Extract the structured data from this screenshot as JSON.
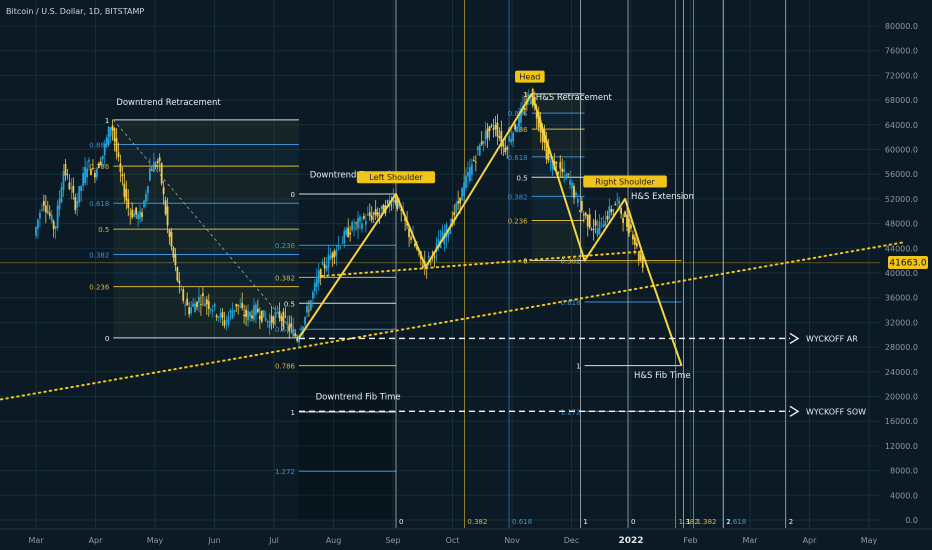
{
  "header": {
    "symbol_text": "Bitcoin / U.S. Dollar, 1D, BITSTAMP"
  },
  "price_tag": {
    "value": "41663.0",
    "bg": "#f0c419",
    "fg": "#101010"
  },
  "colors": {
    "background": "#0b1a24",
    "grid": "#14303b",
    "candle_up": "#26a0d8",
    "candle_down": "#f2c94c",
    "pattern_line": "#f5d442",
    "trendline": "#f0c419",
    "fib_blue": "#3f8fd6",
    "fib_yellow": "#d9b43a",
    "fib_white": "#d8dde0",
    "text_white": "#e8eef2",
    "text_blue": "#3f8fd6",
    "text_yellow": "#d9b43a",
    "axis_text": "#8a9aa5",
    "label_bg": "#f0c419",
    "label_fg": "#1a1a1a"
  },
  "chart_data": {
    "type": "line",
    "ylim": [
      0,
      84000
    ],
    "y_ticks": [
      "0.0",
      "4000.0",
      "8000.0",
      "12000.0",
      "16000.0",
      "20000.0",
      "24000.0",
      "28000.0",
      "32000.0",
      "36000.0",
      "40000.0",
      "44000.0",
      "48000.0",
      "52000.0",
      "56000.0",
      "60000.0",
      "64000.0",
      "68000.0",
      "72000.0",
      "76000.0",
      "80000.0"
    ],
    "y_tick_values": [
      0,
      4000,
      8000,
      12000,
      16000,
      20000,
      24000,
      28000,
      32000,
      36000,
      40000,
      44000,
      48000,
      52000,
      56000,
      60000,
      64000,
      68000,
      72000,
      76000,
      80000
    ],
    "x_ticks": [
      "Mar",
      "Apr",
      "May",
      "Jun",
      "Jul",
      "Aug",
      "Sep",
      "Oct",
      "Nov",
      "Dec",
      "2022",
      "Feb",
      "Mar",
      "Apr",
      "May"
    ],
    "x_tick_months": [
      0,
      1,
      2,
      3,
      4,
      5,
      6,
      7,
      8,
      9,
      10,
      11,
      12,
      13,
      14
    ],
    "price_path": [
      [
        0.0,
        46000
      ],
      [
        0.15,
        52000
      ],
      [
        0.35,
        47000
      ],
      [
        0.5,
        57000
      ],
      [
        0.7,
        51000
      ],
      [
        0.9,
        58000
      ],
      [
        1.0,
        56000
      ],
      [
        1.15,
        59000
      ],
      [
        1.3,
        64500
      ],
      [
        1.45,
        56000
      ],
      [
        1.6,
        50000
      ],
      [
        1.8,
        49000
      ],
      [
        1.95,
        57000
      ],
      [
        2.1,
        58000
      ],
      [
        2.25,
        47000
      ],
      [
        2.45,
        37000
      ],
      [
        2.6,
        34000
      ],
      [
        2.8,
        36000
      ],
      [
        3.0,
        34500
      ],
      [
        3.2,
        32000
      ],
      [
        3.4,
        35000
      ],
      [
        3.55,
        33000
      ],
      [
        3.75,
        34000
      ],
      [
        3.95,
        32000
      ],
      [
        4.1,
        33500
      ],
      [
        4.3,
        31000
      ],
      [
        4.42,
        29500
      ],
      [
        4.6,
        34000
      ],
      [
        4.8,
        40000
      ],
      [
        5.0,
        43000
      ],
      [
        5.3,
        47000
      ],
      [
        5.6,
        49000
      ],
      [
        5.85,
        50000
      ],
      [
        6.05,
        52500
      ],
      [
        6.3,
        46500
      ],
      [
        6.55,
        41000
      ],
      [
        6.7,
        43000
      ],
      [
        7.0,
        48000
      ],
      [
        7.3,
        56000
      ],
      [
        7.55,
        62000
      ],
      [
        7.75,
        64000
      ],
      [
        7.9,
        60000
      ],
      [
        8.05,
        63000
      ],
      [
        8.25,
        67000
      ],
      [
        8.35,
        69000
      ],
      [
        8.5,
        64000
      ],
      [
        8.65,
        58000
      ],
      [
        8.8,
        57000
      ],
      [
        9.0,
        55000
      ],
      [
        9.15,
        51000
      ],
      [
        9.3,
        48500
      ],
      [
        9.45,
        47000
      ],
      [
        9.6,
        49000
      ],
      [
        9.8,
        51500
      ],
      [
        9.95,
        48000
      ],
      [
        10.05,
        47000
      ],
      [
        10.15,
        43000
      ],
      [
        10.22,
        41663
      ]
    ],
    "pattern_points": [
      [
        4.42,
        29500
      ],
      [
        6.05,
        52800
      ],
      [
        6.55,
        41000
      ],
      [
        8.33,
        69000
      ],
      [
        9.22,
        42000
      ],
      [
        9.9,
        52000
      ],
      [
        10.2,
        43000
      ],
      [
        10.85,
        25000
      ]
    ],
    "trendline": {
      "start": [
        -1.5,
        18000
      ],
      "end": [
        14.6,
        45000
      ]
    },
    "dashed_levels": [
      {
        "value": 29400,
        "label": "WYCKOFF AR",
        "x_start": 4.42
      },
      {
        "value": 17600,
        "label": "WYCKOFF SOW",
        "x_start": 4.42
      }
    ],
    "labels": [
      {
        "text": "Downtrend Retracement",
        "kind": "title"
      },
      {
        "text": "Downtrend Extension",
        "kind": "title"
      },
      {
        "text": "Downtrend Fib Time",
        "kind": "title"
      },
      {
        "text": "H&S Retracement",
        "kind": "title"
      },
      {
        "text": "H&S Extension",
        "kind": "title"
      },
      {
        "text": "H&S Fib Time",
        "kind": "title"
      },
      {
        "text": "Left Shoulder",
        "kind": "tag"
      },
      {
        "text": "Head",
        "kind": "tag"
      },
      {
        "text": "Right Shoulder",
        "kind": "tag"
      }
    ],
    "fib_downtrend_retracement": {
      "x_range": [
        1.3,
        4.42
      ],
      "low": 29500,
      "high": 64800,
      "levels": [
        {
          "ratio": "1",
          "value": 64800,
          "color": "white"
        },
        {
          "ratio": "0.886",
          "value": 60800,
          "color": "blue"
        },
        {
          "ratio": "0.786",
          "value": 57300,
          "color": "yellow"
        },
        {
          "ratio": "0.618",
          "value": 51300,
          "color": "blue"
        },
        {
          "ratio": "0.5",
          "value": 47100,
          "color": "yellow"
        },
        {
          "ratio": "0.382",
          "value": 43000,
          "color": "blue"
        },
        {
          "ratio": "0.236",
          "value": 37800,
          "color": "yellow"
        },
        {
          "ratio": "0",
          "value": 29500,
          "color": "white"
        }
      ]
    },
    "fib_downtrend_extension": {
      "x_range": [
        4.42,
        6.05
      ],
      "levels": [
        {
          "ratio": "0",
          "value": 52800,
          "color": "white"
        },
        {
          "ratio": "0.236",
          "value": 44500,
          "color": "blue"
        },
        {
          "ratio": "0.382",
          "value": 39300,
          "color": "yellow"
        },
        {
          "ratio": "0.5",
          "value": 35100,
          "color": "white"
        },
        {
          "ratio": "0.618",
          "value": 30900,
          "color": "blue"
        },
        {
          "ratio": "0.786",
          "value": 25000,
          "color": "yellow"
        },
        {
          "ratio": "1",
          "value": 17500,
          "color": "white"
        },
        {
          "ratio": "1.272",
          "value": 7900,
          "color": "blue"
        }
      ]
    },
    "fib_hs_retracement": {
      "x_range": [
        8.33,
        9.22
      ],
      "levels": [
        {
          "ratio": "1",
          "value": 69000,
          "color": "white"
        },
        {
          "ratio": "0.886",
          "value": 65900,
          "color": "blue"
        },
        {
          "ratio": "0.786",
          "value": 63300,
          "color": "yellow"
        },
        {
          "ratio": "0.618",
          "value": 58800,
          "color": "blue"
        },
        {
          "ratio": "0.5",
          "value": 55500,
          "color": "white"
        },
        {
          "ratio": "0.382",
          "value": 52400,
          "color": "blue"
        },
        {
          "ratio": "0.236",
          "value": 48500,
          "color": "yellow"
        },
        {
          "ratio": "0",
          "value": 42000,
          "color": "white"
        }
      ]
    },
    "fib_hs_extension": {
      "x_range": [
        9.22,
        10.85
      ],
      "levels": [
        {
          "ratio": "0.382",
          "value": 42000,
          "color": "yellow"
        },
        {
          "ratio": "0.618",
          "value": 35300,
          "color": "blue"
        },
        {
          "ratio": "1",
          "value": 25000,
          "color": "white"
        },
        {
          "ratio": "1.272",
          "value": 17600,
          "color": "blue"
        }
      ]
    },
    "fib_time_downtrend": {
      "lines": [
        {
          "ratio": "0",
          "x": 6.05,
          "color": "white"
        },
        {
          "ratio": "0.382",
          "x": 7.2,
          "color": "yellow"
        },
        {
          "ratio": "0.618",
          "x": 7.95,
          "color": "blue"
        },
        {
          "ratio": "1",
          "x": 9.15,
          "color": "white"
        },
        {
          "ratio": "1.382",
          "x": 10.75,
          "color": "yellow"
        },
        {
          "ratio": "1.618",
          "x": 11.55,
          "color": "blue"
        },
        {
          "ratio": "2",
          "x": 12.6,
          "color": "white"
        }
      ]
    },
    "fib_time_hs": {
      "lines": [
        {
          "ratio": "0",
          "x": 9.95,
          "color": "white"
        },
        {
          "ratio": "1",
          "x": 10.88,
          "color": "white"
        },
        {
          "ratio": "1.382",
          "x": 11.05,
          "color": "yellow"
        },
        {
          "ratio": "2",
          "x": 11.55,
          "color": "white"
        }
      ]
    }
  }
}
